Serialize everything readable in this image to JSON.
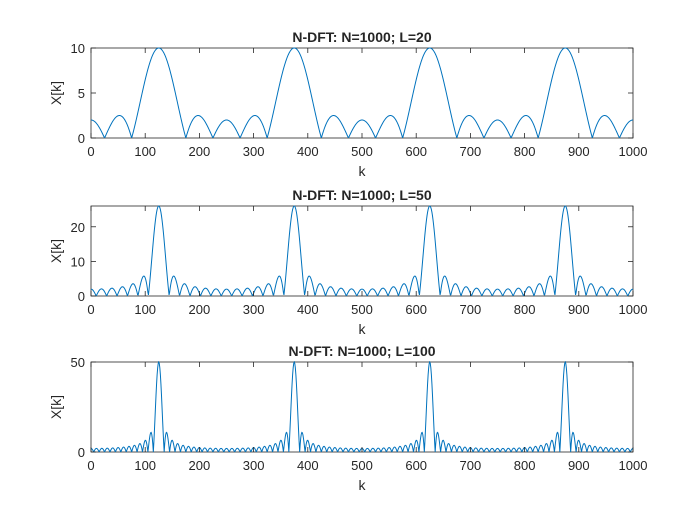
{
  "chart_data": [
    {
      "type": "line",
      "title": "N-DFT: N=1000; L=20",
      "xlabel": "k",
      "ylabel": "X[k]",
      "xlim": [
        0,
        1000
      ],
      "ylim": [
        0,
        10
      ],
      "xticks": [
        0,
        100,
        200,
        300,
        400,
        500,
        600,
        700,
        800,
        900,
        1000
      ],
      "yticks": [
        0,
        5,
        10
      ],
      "grid": false,
      "color": "#0072BD",
      "series": [
        {
          "L": 20,
          "N": 1000,
          "peaks_at": [
            125,
            375,
            625,
            875
          ],
          "peak_value": 10,
          "formula": "|X[k]| = |sum_{n=0}^{L-1} (cos(2*pi*125*n/1000) + cos(2*pi*375*n/1000)) * exp(-j*2*pi*k*n/1000)|, k = 0..1000"
        }
      ]
    },
    {
      "type": "line",
      "title": "N-DFT: N=1000; L=50",
      "xlabel": "k",
      "ylabel": "X[k]",
      "xlim": [
        0,
        1000
      ],
      "ylim": [
        0,
        26
      ],
      "xticks": [
        0,
        100,
        200,
        300,
        400,
        500,
        600,
        700,
        800,
        900,
        1000
      ],
      "yticks": [
        0,
        10,
        20
      ],
      "grid": false,
      "color": "#0072BD",
      "series": [
        {
          "L": 50,
          "N": 1000,
          "peaks_at": [
            125,
            375,
            625,
            875
          ],
          "peak_value": 25,
          "formula": "|X[k]| = |sum_{n=0}^{L-1} (cos(2*pi*125*n/1000) + cos(2*pi*375*n/1000)) * exp(-j*2*pi*k*n/1000)|, k = 0..1000"
        }
      ]
    },
    {
      "type": "line",
      "title": "N-DFT: N=1000; L=100",
      "xlabel": "k",
      "ylabel": "X[k]",
      "xlim": [
        0,
        1000
      ],
      "ylim": [
        0,
        50
      ],
      "xticks": [
        0,
        100,
        200,
        300,
        400,
        500,
        600,
        700,
        800,
        900,
        1000
      ],
      "yticks": [
        0,
        50
      ],
      "grid": false,
      "color": "#0072BD",
      "series": [
        {
          "L": 100,
          "N": 1000,
          "peaks_at": [
            125,
            375,
            625,
            875
          ],
          "peak_value": 50,
          "formula": "|X[k]| = |sum_{n=0}^{L-1} (cos(2*pi*125*n/1000) + cos(2*pi*375*n/1000)) * exp(-j*2*pi*k*n/1000)|, k = 0..1000"
        }
      ]
    }
  ]
}
